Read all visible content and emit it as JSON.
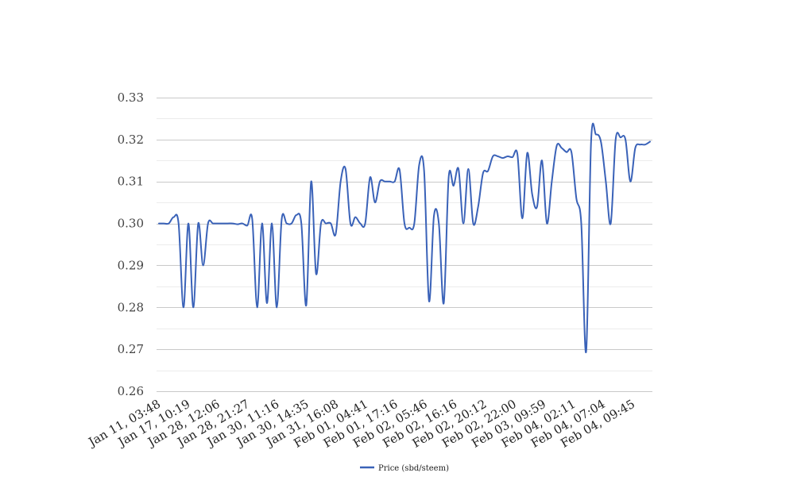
{
  "chart_data": {
    "type": "line",
    "title": "",
    "xlabel": "",
    "ylabel": "",
    "ylim": [
      0.26,
      0.33
    ],
    "y_ticks": [
      "0.26",
      "0.27",
      "0.28",
      "0.29",
      "0.30",
      "0.31",
      "0.32",
      "0.33"
    ],
    "y_minor_step": 0.005,
    "x_tick_labels": [
      "Jan 11, 03:48",
      "Jan 17, 10:19",
      "Jan 28, 12:06",
      "Jan 28, 21:27",
      "Jan 30, 11:16",
      "Jan 30, 14:35",
      "Jan 31, 16:08",
      "Feb 01, 04:41",
      "Feb 01, 17:16",
      "Feb 02, 05:46",
      "Feb 02, 16:16",
      "Feb 02, 20:12",
      "Feb 02, 22:00",
      "Feb 03, 09:59",
      "Feb 04, 02:11",
      "Feb 04, 07:04",
      "Feb 04, 09:45"
    ],
    "grid": true,
    "legend_position": "bottom",
    "series": [
      {
        "name": "Price (sbd/steem)",
        "color": "#3a62b8",
        "values": [
          0.3,
          0.3,
          0.3,
          0.3015,
          0.3,
          0.28,
          0.3,
          0.28,
          0.3,
          0.29,
          0.3,
          0.3,
          0.3,
          0.3,
          0.3,
          0.3,
          0.2998,
          0.3,
          0.2995,
          0.301,
          0.28,
          0.3,
          0.281,
          0.3,
          0.28,
          0.301,
          0.3,
          0.3,
          0.302,
          0.3,
          0.2805,
          0.31,
          0.288,
          0.3,
          0.3,
          0.3,
          0.2975,
          0.31,
          0.313,
          0.3,
          0.3015,
          0.3,
          0.3,
          0.311,
          0.305,
          0.31,
          0.31,
          0.31,
          0.31,
          0.3128,
          0.3,
          0.299,
          0.3,
          0.314,
          0.3125,
          0.2815,
          0.3018,
          0.3,
          0.281,
          0.311,
          0.309,
          0.313,
          0.3,
          0.313,
          0.3,
          0.304,
          0.312,
          0.3125,
          0.316,
          0.316,
          0.3156,
          0.316,
          0.3158,
          0.3165,
          0.3012,
          0.3168,
          0.307,
          0.304,
          0.315,
          0.3,
          0.31,
          0.3185,
          0.318,
          0.317,
          0.317,
          0.306,
          0.3,
          0.2695,
          0.3195,
          0.3212,
          0.3195,
          0.31,
          0.3,
          0.32,
          0.3205,
          0.32,
          0.31,
          0.318,
          0.3188,
          0.3188,
          0.3195
        ]
      }
    ]
  }
}
